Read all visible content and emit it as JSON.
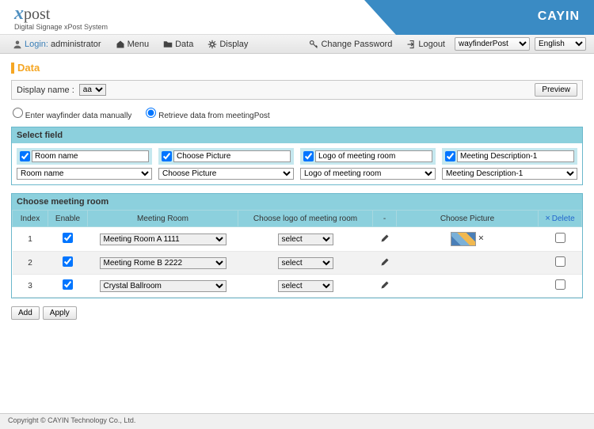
{
  "header": {
    "logo_x": "x",
    "logo_post": "post",
    "subtitle": "Digital Signage xPost System",
    "brand": "CAYIN"
  },
  "toolbar": {
    "login_label": "Login:",
    "login_user": "administrator",
    "menu": "Menu",
    "data": "Data",
    "display": "Display",
    "change_password": "Change Password",
    "logout": "Logout",
    "module_select": "wayfinderPost",
    "lang_select": "English"
  },
  "page": {
    "title": "Data",
    "display_name_label": "Display name :",
    "display_name_value": "aa",
    "preview": "Preview",
    "radio_manual": "Enter wayfinder data manually",
    "radio_retrieve": "Retrieve data from meetingPost"
  },
  "select_field": {
    "header": "Select field",
    "cols": [
      {
        "label": "Room name",
        "select": "Room name"
      },
      {
        "label": "Choose Picture",
        "select": "Choose Picture"
      },
      {
        "label": "Logo of meeting room",
        "select": "Logo of meeting room"
      },
      {
        "label": "Meeting Description-1",
        "select": "Meeting Description-1"
      }
    ]
  },
  "meeting": {
    "header": "Choose meeting room",
    "th": {
      "index": "Index",
      "enable": "Enable",
      "room": "Meeting Room",
      "logo": "Choose logo of meeting room",
      "edit": "-",
      "picture": "Choose Picture",
      "delete": "Delete"
    },
    "rows": [
      {
        "index": "1",
        "room": "Meeting Room A 1111",
        "logo": "select",
        "has_pic": true
      },
      {
        "index": "2",
        "room": "Meeting Rome B 2222",
        "logo": "select",
        "has_pic": false
      },
      {
        "index": "3",
        "room": "Crystal Ballroom",
        "logo": "select",
        "has_pic": false
      }
    ],
    "delete_x": "×"
  },
  "buttons": {
    "add": "Add",
    "apply": "Apply"
  },
  "footer": "Copyright © CAYIN Technology Co., Ltd."
}
